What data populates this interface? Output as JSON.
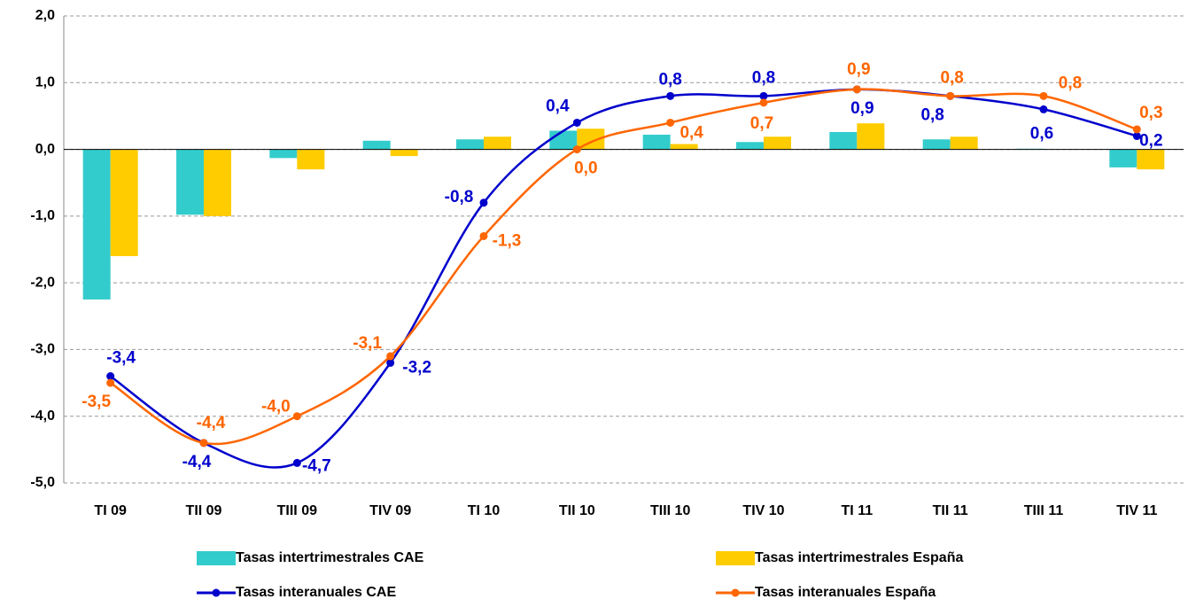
{
  "chart_data": {
    "type": "bar_line",
    "categories": [
      "TI 09",
      "TII 09",
      "TIII 09",
      "TIV 09",
      "TI 10",
      "TII 10",
      "TIII 10",
      "TIV 10",
      "TI 11",
      "TII 11",
      "TIII 11",
      "TIV 11"
    ],
    "ylim": [
      -5,
      2
    ],
    "yticks": [
      {
        "value": 2,
        "label": "2,0"
      },
      {
        "value": 1,
        "label": "1,0"
      },
      {
        "value": 0,
        "label": "0,0"
      },
      {
        "value": -1,
        "label": "-1,0"
      },
      {
        "value": -2,
        "label": "-2,0"
      },
      {
        "value": -3,
        "label": "-3,0"
      },
      {
        "value": -4,
        "label": "-4,0"
      },
      {
        "value": -5,
        "label": "-5,0"
      }
    ],
    "grid": true,
    "series": [
      {
        "name": "Tasas intertrimestrales CAE",
        "type": "bar",
        "color": "#33CCCC",
        "values": [
          -2.25,
          -0.98,
          -0.13,
          0.13,
          0.15,
          0.28,
          0.22,
          0.11,
          0.26,
          0.15,
          0.01,
          -0.27
        ]
      },
      {
        "name": "Tasas intertrimestrales España",
        "type": "bar",
        "color": "#FFCC00",
        "values": [
          -1.6,
          -1.0,
          -0.3,
          -0.1,
          0.19,
          0.31,
          0.08,
          0.19,
          0.39,
          0.19,
          0,
          -0.3
        ]
      },
      {
        "name": "Tasas interanuales CAE",
        "type": "line",
        "color": "#0000CC",
        "values": [
          -3.4,
          -4.4,
          -4.7,
          -3.2,
          -0.8,
          0.4,
          0.8,
          0.8,
          0.9,
          0.8,
          0.6,
          0.2
        ],
        "value_labels": [
          "-3,4",
          "-4,4",
          "-4,7",
          "-3,2",
          "-0,8",
          "0,4",
          "0,8",
          "0,8",
          "0,9",
          "0,8",
          "0,6",
          "0,2"
        ]
      },
      {
        "name": "Tasas interanuales España",
        "type": "line",
        "color": "#FF6600",
        "values": [
          -3.5,
          -4.4,
          -4.0,
          -3.1,
          -1.3,
          0.0,
          0.4,
          0.7,
          0.9,
          0.8,
          0.8,
          0.3
        ],
        "value_labels": [
          "-3,5",
          "-4,4",
          "-4,0",
          "-3,1",
          "-1,3",
          "0,0",
          "0,4",
          "0,7",
          "0,9",
          "0,8",
          "0,8",
          "0,3"
        ]
      }
    ]
  }
}
